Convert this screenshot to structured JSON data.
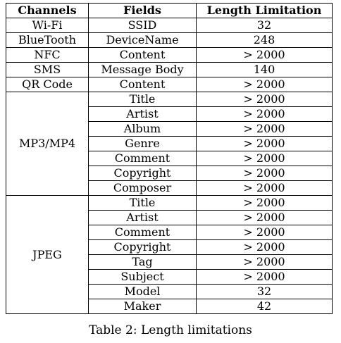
{
  "table": {
    "headers": [
      "Channels",
      "Fields",
      "Length Limitation"
    ],
    "groups": [
      {
        "channel": "Wi-Fi",
        "rows": [
          {
            "field": "SSID",
            "limit": "32"
          }
        ]
      },
      {
        "channel": "BlueTooth",
        "rows": [
          {
            "field": "DeviceName",
            "limit": "248"
          }
        ]
      },
      {
        "channel": "NFC",
        "rows": [
          {
            "field": "Content",
            "limit": "> 2000"
          }
        ]
      },
      {
        "channel": "SMS",
        "rows": [
          {
            "field": "Message Body",
            "limit": "140"
          }
        ]
      },
      {
        "channel": "QR Code",
        "rows": [
          {
            "field": "Content",
            "limit": "> 2000"
          }
        ]
      },
      {
        "channel": "MP3/MP4",
        "rows": [
          {
            "field": "Title",
            "limit": "> 2000"
          },
          {
            "field": "Artist",
            "limit": "> 2000"
          },
          {
            "field": "Album",
            "limit": "> 2000"
          },
          {
            "field": "Genre",
            "limit": "> 2000"
          },
          {
            "field": "Comment",
            "limit": "> 2000"
          },
          {
            "field": "Copyright",
            "limit": "> 2000"
          },
          {
            "field": "Composer",
            "limit": "> 2000"
          }
        ]
      },
      {
        "channel": "JPEG",
        "rows": [
          {
            "field": "Title",
            "limit": "> 2000"
          },
          {
            "field": "Artist",
            "limit": "> 2000"
          },
          {
            "field": "Comment",
            "limit": "> 2000"
          },
          {
            "field": "Copyright",
            "limit": "> 2000"
          },
          {
            "field": "Tag",
            "limit": "> 2000"
          },
          {
            "field": "Subject",
            "limit": "> 2000"
          },
          {
            "field": "Model",
            "limit": "32"
          },
          {
            "field": "Maker",
            "limit": "42"
          }
        ]
      }
    ]
  },
  "caption": "Table 2: Length limitations"
}
